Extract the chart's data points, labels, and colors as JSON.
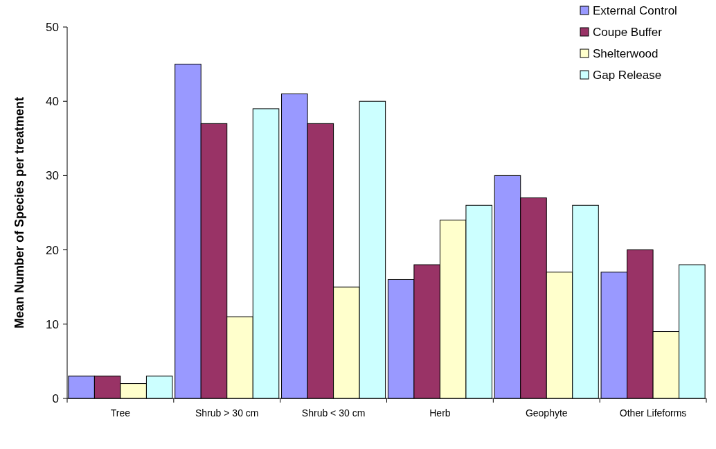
{
  "chart_data": {
    "type": "bar",
    "ylabel": "Mean Number of Species per treatment",
    "categories": [
      "Tree",
      "Shrub > 30 cm",
      "Shrub < 30 cm",
      "Herb",
      "Geophyte",
      "Other Lifeforms"
    ],
    "series": [
      {
        "name": "External Control",
        "color": "#9999ff",
        "values": [
          3,
          45,
          41,
          16,
          30,
          17
        ]
      },
      {
        "name": "Coupe Buffer",
        "color": "#993366",
        "values": [
          3,
          37,
          37,
          18,
          27,
          20
        ]
      },
      {
        "name": "Shelterwood",
        "color": "#ffffcc",
        "values": [
          2,
          11,
          15,
          24,
          17,
          9
        ]
      },
      {
        "name": "Gap Release",
        "color": "#ccffff",
        "values": [
          3,
          39,
          40,
          26,
          26,
          18
        ]
      }
    ],
    "ylim": [
      0,
      50
    ],
    "yticks": [
      0,
      10,
      20,
      30,
      40,
      50
    ],
    "grid": false,
    "legend": "top right"
  }
}
